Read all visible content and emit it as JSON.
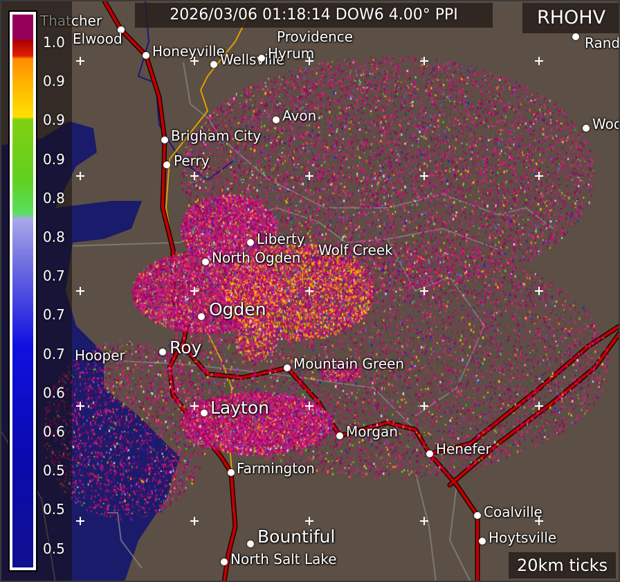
{
  "header": {
    "timestamp_label": "2026/03/06 01:18:14 DOW6 4.00° PPI",
    "product": "RHOHV",
    "scale_note": "20km ticks"
  },
  "colorbar": {
    "tick_labels": [
      "1.0",
      "0.9",
      "0.9",
      "0.9",
      "0.8",
      "0.8",
      "0.7",
      "0.7",
      "0.7",
      "0.6",
      "0.6",
      "0.5",
      "0.5",
      "0.5"
    ]
  },
  "places": [
    "Thatcher",
    "Elwood",
    "Honeyville",
    "Wellsville",
    "Hyrum",
    "Avon",
    "Brigham City",
    "Perry",
    "Liberty",
    "Wolf Creek",
    "North Ogden",
    "Ogden",
    "Roy",
    "Hooper",
    "Mountain Green",
    "Layton",
    "Morgan",
    "Henefer",
    "Farmington",
    "Coalville",
    "Hoytsville",
    "Bountiful",
    "North Salt Lake",
    "Randolph",
    "Woodruff",
    "Providence"
  ],
  "colors": {
    "land": "#5c4f45",
    "lake": "#1a1a6a",
    "road": "#c00000",
    "river": "#1a1a7a",
    "highway_minor": "#e0a000",
    "county_line": "#8a8a8a"
  }
}
